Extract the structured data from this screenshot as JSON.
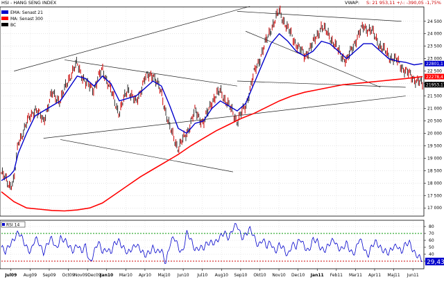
{
  "header": {
    "title": "HSI - HANG SENG INDEX",
    "vwap_label": "VWAP:",
    "stats_text": "S: 21 953,11  +/-: -390,05  -1,75%"
  },
  "legend": [
    {
      "label": "EMA: Senast 21",
      "color": "#0000cc"
    },
    {
      "label": "MA: Senast 300",
      "color": "#ff0000"
    },
    {
      "label": "BC",
      "color": "#000000"
    }
  ],
  "price_labels": {
    "ema": {
      "text": "22801,1",
      "value": 22801.1,
      "color": "#0000cc"
    },
    "ma": {
      "text": "22278,4",
      "value": 22278.4,
      "color": "#ff0000"
    },
    "last": {
      "text": "21953,11",
      "value": 21953.11,
      "color": "#000000"
    }
  },
  "rsi_panel": {
    "label": "RSI 14",
    "current_text": "29,43",
    "current_value": 29.43,
    "overbought": 70,
    "oversold": 30
  },
  "chart_data": {
    "type": "line",
    "title": "HSI - HANG SENG INDEX",
    "x_tick_labels": [
      "Jul09",
      "Aug09",
      "Sep09",
      "Oct09",
      "Nov09Dec09",
      "Jan10",
      "Mar10",
      "Apr10",
      "Maj10",
      "Jun10",
      "Jul10",
      "Aug10",
      "Sep10",
      "Okt10",
      "Nov10",
      "Dec10",
      "Jan11",
      "Feb11",
      "Mar11",
      "Apr11",
      "Maj11",
      "Jun11"
    ],
    "bold_x_ticks": [
      "Jul09",
      "Jan10",
      "Jan11"
    ],
    "y_ticks": [
      17000,
      17500,
      18000,
      18500,
      19000,
      19500,
      20000,
      20500,
      21000,
      21500,
      22000,
      22500,
      23000,
      23500,
      24000,
      24500
    ],
    "y_tick_labels": [
      "17 000",
      "17 500",
      "18 000",
      "18 500",
      "19 000",
      "19 500",
      "20 000",
      "20 500",
      "21 000",
      "21 500",
      "22 000",
      "22 500",
      "23 000",
      "23 500",
      "24 000",
      "24 500"
    ],
    "ylim": [
      16700,
      25050
    ],
    "x_range": [
      0,
      100
    ],
    "price_anchors": [
      [
        0,
        18400
      ],
      [
        2,
        17900
      ],
      [
        3,
        18100
      ],
      [
        4,
        19600
      ],
      [
        6,
        20400
      ],
      [
        8,
        21000
      ],
      [
        10,
        20500
      ],
      [
        12,
        21600
      ],
      [
        14,
        21300
      ],
      [
        16,
        22200
      ],
      [
        18,
        22800
      ],
      [
        20,
        22000
      ],
      [
        22,
        21800
      ],
      [
        24,
        22600
      ],
      [
        26,
        21700
      ],
      [
        28,
        20800
      ],
      [
        30,
        21800
      ],
      [
        32,
        21200
      ],
      [
        34,
        22200
      ],
      [
        36,
        22400
      ],
      [
        38,
        21600
      ],
      [
        40,
        20200
      ],
      [
        42,
        19400
      ],
      [
        44,
        20000
      ],
      [
        46,
        20900
      ],
      [
        48,
        20400
      ],
      [
        50,
        21300
      ],
      [
        52,
        21700
      ],
      [
        54,
        21100
      ],
      [
        56,
        20500
      ],
      [
        58,
        21100
      ],
      [
        60,
        22400
      ],
      [
        62,
        23300
      ],
      [
        64,
        24200
      ],
      [
        66,
        24900
      ],
      [
        68,
        24200
      ],
      [
        70,
        23600
      ],
      [
        72,
        23100
      ],
      [
        74,
        23600
      ],
      [
        76,
        24300
      ],
      [
        78,
        23900
      ],
      [
        80,
        23300
      ],
      [
        82,
        22900
      ],
      [
        84,
        23700
      ],
      [
        86,
        24300
      ],
      [
        88,
        24100
      ],
      [
        90,
        23500
      ],
      [
        92,
        23100
      ],
      [
        94,
        22900
      ],
      [
        96,
        22500
      ],
      [
        98,
        22200
      ],
      [
        100,
        21953
      ]
    ],
    "ema21": [
      [
        0,
        18100
      ],
      [
        2,
        18300
      ],
      [
        3,
        18500
      ],
      [
        4,
        19200
      ],
      [
        6,
        20000
      ],
      [
        8,
        20700
      ],
      [
        10,
        20900
      ],
      [
        12,
        21100
      ],
      [
        14,
        21300
      ],
      [
        16,
        21800
      ],
      [
        18,
        22300
      ],
      [
        20,
        22200
      ],
      [
        22,
        21900
      ],
      [
        24,
        22300
      ],
      [
        26,
        22000
      ],
      [
        28,
        21300
      ],
      [
        30,
        21400
      ],
      [
        32,
        21500
      ],
      [
        34,
        21800
      ],
      [
        36,
        22100
      ],
      [
        38,
        21900
      ],
      [
        40,
        21100
      ],
      [
        42,
        20200
      ],
      [
        44,
        20000
      ],
      [
        46,
        20400
      ],
      [
        48,
        20500
      ],
      [
        50,
        21000
      ],
      [
        52,
        21300
      ],
      [
        54,
        21100
      ],
      [
        56,
        20900
      ],
      [
        58,
        21200
      ],
      [
        60,
        22000
      ],
      [
        62,
        22800
      ],
      [
        64,
        23600
      ],
      [
        66,
        24000
      ],
      [
        68,
        23700
      ],
      [
        70,
        23300
      ],
      [
        72,
        23100
      ],
      [
        74,
        23300
      ],
      [
        76,
        23700
      ],
      [
        78,
        23600
      ],
      [
        80,
        23300
      ],
      [
        82,
        23000
      ],
      [
        84,
        23300
      ],
      [
        86,
        23600
      ],
      [
        88,
        23600
      ],
      [
        90,
        23300
      ],
      [
        92,
        23000
      ],
      [
        94,
        22900
      ],
      [
        96,
        22850
      ],
      [
        98,
        22750
      ],
      [
        100,
        22801
      ]
    ],
    "ma300": [
      [
        0,
        17650
      ],
      [
        3,
        17250
      ],
      [
        6,
        17000
      ],
      [
        9,
        16950
      ],
      [
        12,
        16900
      ],
      [
        15,
        16880
      ],
      [
        18,
        16920
      ],
      [
        21,
        17000
      ],
      [
        24,
        17200
      ],
      [
        27,
        17550
      ],
      [
        30,
        17900
      ],
      [
        33,
        18250
      ],
      [
        36,
        18550
      ],
      [
        39,
        18850
      ],
      [
        42,
        19150
      ],
      [
        45,
        19500
      ],
      [
        48,
        19800
      ],
      [
        51,
        20100
      ],
      [
        54,
        20350
      ],
      [
        57,
        20600
      ],
      [
        60,
        20800
      ],
      [
        63,
        21050
      ],
      [
        66,
        21300
      ],
      [
        69,
        21500
      ],
      [
        72,
        21650
      ],
      [
        75,
        21750
      ],
      [
        78,
        21850
      ],
      [
        81,
        21950
      ],
      [
        84,
        22000
      ],
      [
        87,
        22050
      ],
      [
        90,
        22100
      ],
      [
        93,
        22150
      ],
      [
        96,
        22200
      ],
      [
        100,
        22278
      ]
    ],
    "trendlines": [
      [
        [
          3,
          22500
        ],
        [
          59,
          25100
        ]
      ],
      [
        [
          15,
          22950
        ],
        [
          56,
          21900
        ]
      ],
      [
        [
          10,
          19800
        ],
        [
          96,
          21500
        ]
      ],
      [
        [
          14,
          19750
        ],
        [
          55,
          18450
        ]
      ],
      [
        [
          58,
          24100
        ],
        [
          90,
          21850
        ]
      ],
      [
        [
          56,
          24900
        ],
        [
          95,
          24500
        ]
      ],
      [
        [
          56,
          22100
        ],
        [
          96,
          21850
        ]
      ]
    ],
    "rsi14": [
      [
        0,
        50
      ],
      [
        1,
        40
      ],
      [
        2,
        55
      ],
      [
        3,
        65
      ],
      [
        4,
        70
      ],
      [
        5,
        60
      ],
      [
        6,
        52
      ],
      [
        7,
        45
      ],
      [
        8,
        60
      ],
      [
        9,
        55
      ],
      [
        10,
        45
      ],
      [
        11,
        56
      ],
      [
        12,
        60
      ],
      [
        13,
        48
      ],
      [
        14,
        66
      ],
      [
        15,
        58
      ],
      [
        16,
        50
      ],
      [
        17,
        47
      ],
      [
        18,
        56
      ],
      [
        19,
        40
      ],
      [
        20,
        52
      ],
      [
        21,
        30
      ],
      [
        22,
        42
      ],
      [
        23,
        55
      ],
      [
        24,
        45
      ],
      [
        25,
        50
      ],
      [
        26,
        40
      ],
      [
        27,
        55
      ],
      [
        28,
        62
      ],
      [
        29,
        50
      ],
      [
        30,
        38
      ],
      [
        31,
        48
      ],
      [
        32,
        58
      ],
      [
        33,
        46
      ],
      [
        34,
        35
      ],
      [
        35,
        44
      ],
      [
        36,
        52
      ],
      [
        37,
        40
      ],
      [
        38,
        45
      ],
      [
        39,
        30
      ],
      [
        40,
        55
      ],
      [
        41,
        62
      ],
      [
        42,
        50
      ],
      [
        43,
        45
      ],
      [
        44,
        70
      ],
      [
        45,
        58
      ],
      [
        46,
        48
      ],
      [
        47,
        52
      ],
      [
        48,
        46
      ],
      [
        49,
        55
      ],
      [
        50,
        60
      ],
      [
        51,
        58
      ],
      [
        52,
        62
      ],
      [
        53,
        72
      ],
      [
        54,
        66
      ],
      [
        55,
        76
      ],
      [
        56,
        80
      ],
      [
        57,
        66
      ],
      [
        58,
        70
      ],
      [
        59,
        74
      ],
      [
        60,
        64
      ],
      [
        61,
        55
      ],
      [
        62,
        62
      ],
      [
        63,
        48
      ],
      [
        64,
        58
      ],
      [
        65,
        46
      ],
      [
        66,
        52
      ],
      [
        67,
        46
      ],
      [
        68,
        40
      ],
      [
        69,
        56
      ],
      [
        70,
        48
      ],
      [
        71,
        62
      ],
      [
        72,
        54
      ],
      [
        73,
        44
      ],
      [
        74,
        58
      ],
      [
        75,
        60
      ],
      [
        76,
        50
      ],
      [
        77,
        44
      ],
      [
        78,
        54
      ],
      [
        79,
        64
      ],
      [
        80,
        50
      ],
      [
        81,
        44
      ],
      [
        82,
        56
      ],
      [
        83,
        46
      ],
      [
        84,
        42
      ],
      [
        85,
        60
      ],
      [
        86,
        52
      ],
      [
        87,
        40
      ],
      [
        88,
        50
      ],
      [
        89,
        56
      ],
      [
        90,
        52
      ],
      [
        91,
        46
      ],
      [
        92,
        38
      ],
      [
        93,
        50
      ],
      [
        94,
        56
      ],
      [
        95,
        42
      ],
      [
        96,
        52
      ],
      [
        97,
        58
      ],
      [
        98,
        45
      ],
      [
        99,
        34
      ],
      [
        100,
        29.43
      ]
    ],
    "rsi_yticks": [
      30,
      40,
      50,
      60,
      70,
      80
    ],
    "rsi_ylim": [
      20,
      88
    ]
  }
}
